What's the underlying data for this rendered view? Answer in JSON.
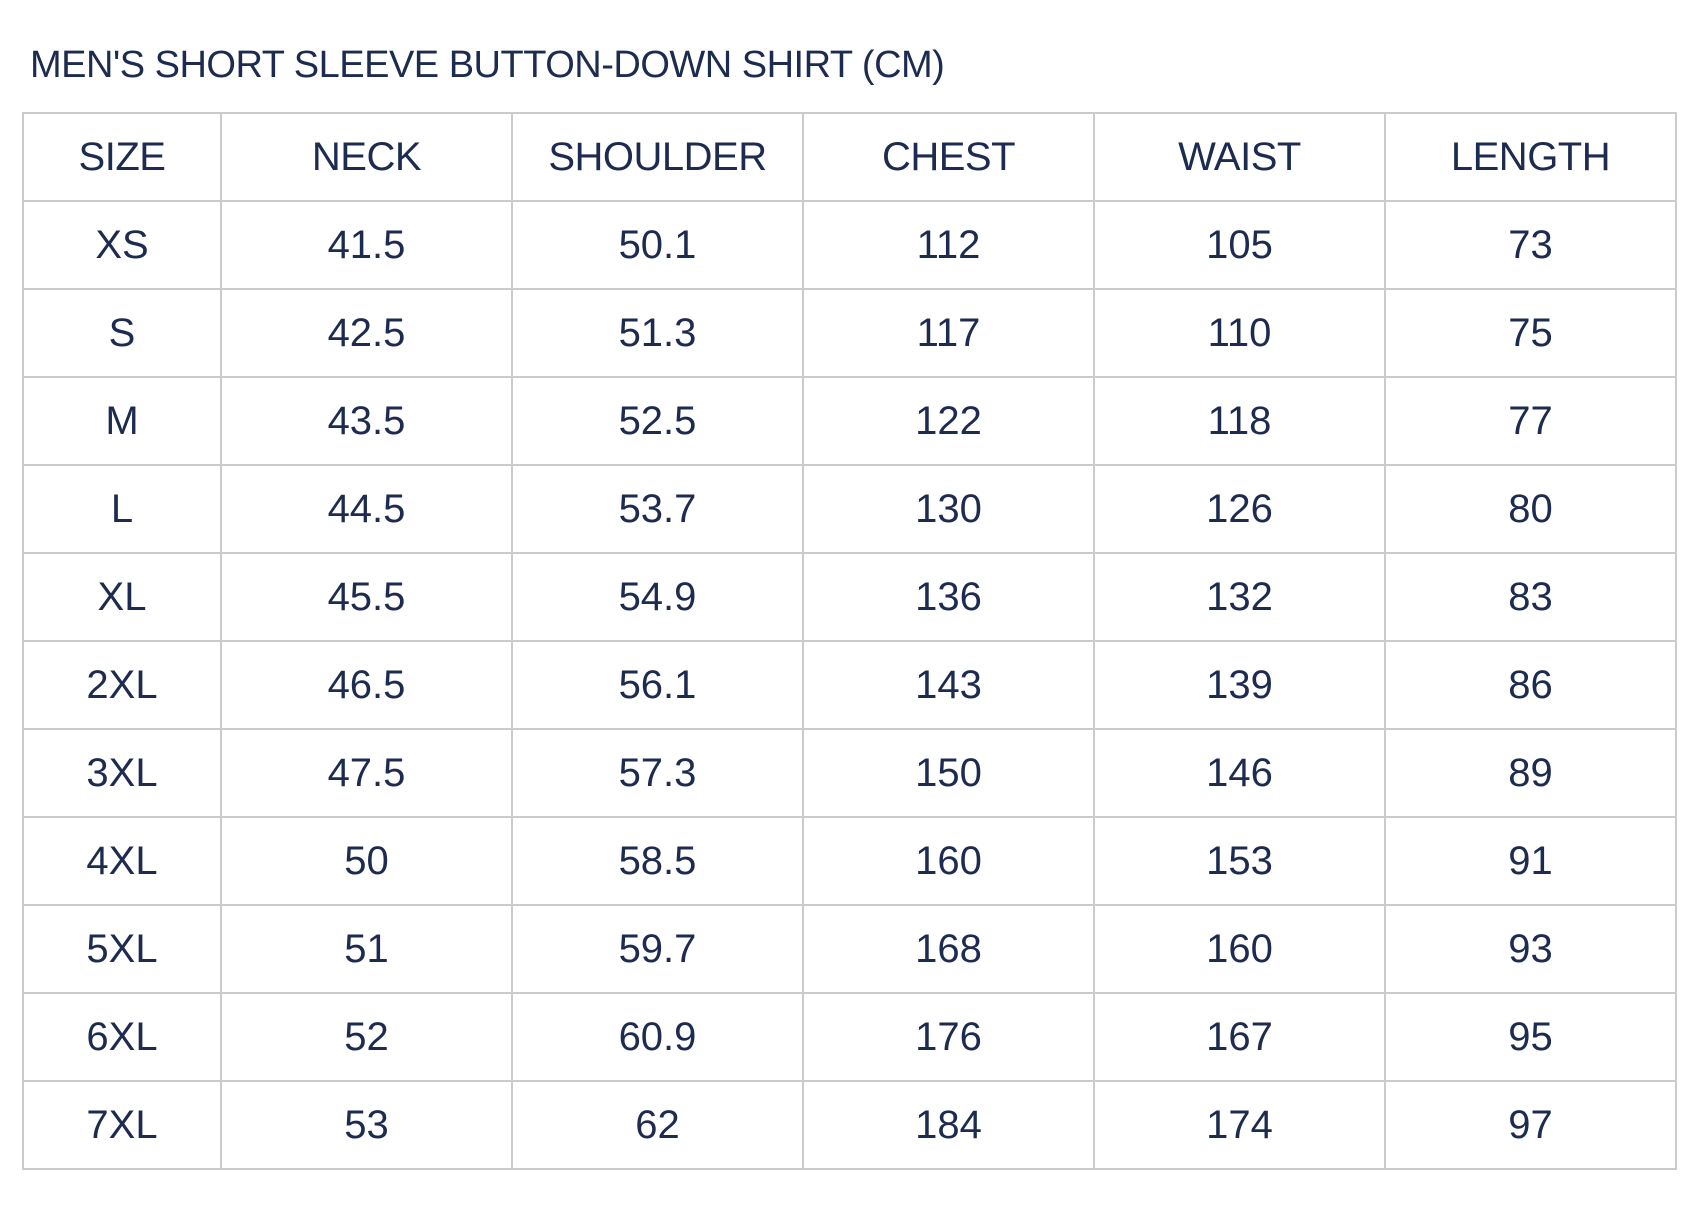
{
  "title": "MEN'S SHORT SLEEVE BUTTON-DOWN SHIRT (CM)",
  "colors": {
    "text": "#1c2b4f",
    "border": "#cbcbcb"
  },
  "table": {
    "headers": [
      "SIZE",
      "NECK",
      "SHOULDER",
      "CHEST",
      "WAIST",
      "LENGTH"
    ],
    "rows": [
      [
        "XS",
        "41.5",
        "50.1",
        "112",
        "105",
        "73"
      ],
      [
        "S",
        "42.5",
        "51.3",
        "117",
        "110",
        "75"
      ],
      [
        "M",
        "43.5",
        "52.5",
        "122",
        "118",
        "77"
      ],
      [
        "L",
        "44.5",
        "53.7",
        "130",
        "126",
        "80"
      ],
      [
        "XL",
        "45.5",
        "54.9",
        "136",
        "132",
        "83"
      ],
      [
        "2XL",
        "46.5",
        "56.1",
        "143",
        "139",
        "86"
      ],
      [
        "3XL",
        "47.5",
        "57.3",
        "150",
        "146",
        "89"
      ],
      [
        "4XL",
        "50",
        "58.5",
        "160",
        "153",
        "91"
      ],
      [
        "5XL",
        "51",
        "59.7",
        "168",
        "160",
        "93"
      ],
      [
        "6XL",
        "52",
        "60.9",
        "176",
        "167",
        "95"
      ],
      [
        "7XL",
        "53",
        "62",
        "184",
        "174",
        "97"
      ]
    ]
  }
}
